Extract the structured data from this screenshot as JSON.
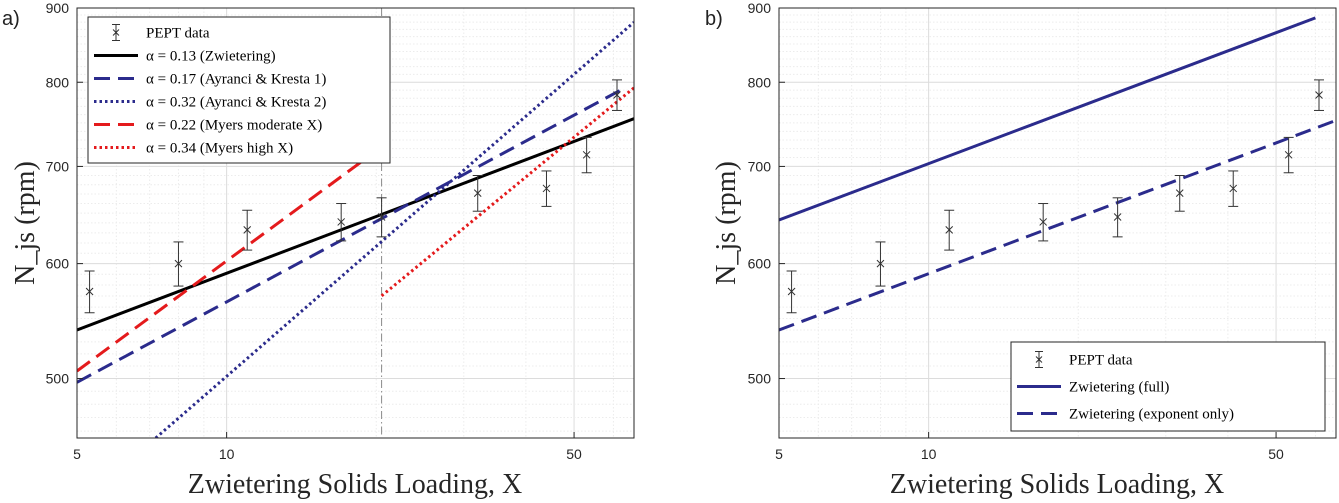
{
  "panels": [
    {
      "label": "a)"
    },
    {
      "label": "b)"
    }
  ],
  "chart_data": [
    {
      "type": "line",
      "panel": "a)",
      "xlabel": "Zwietering Solids Loading, X",
      "ylabel": "N_js (rpm)",
      "xscale": "log",
      "yscale": "log",
      "xlim": [
        5,
        66
      ],
      "ylim": [
        455,
        900
      ],
      "xticks": [
        5,
        10,
        50
      ],
      "yticks": [
        500,
        600,
        700,
        800,
        900
      ],
      "grid": true,
      "vline_x": 20.5,
      "legend_position": "top-left",
      "pept_data": {
        "name": "PEPT data",
        "x": [
          5.3,
          8,
          11,
          17,
          20.5,
          32,
          44,
          53,
          61
        ],
        "y": [
          574,
          600,
          633,
          641,
          646,
          671,
          676,
          713,
          784
        ],
        "err": [
          19,
          21,
          20,
          19,
          20,
          19,
          19,
          20,
          19
        ]
      },
      "series": [
        {
          "name": "α = 0.13 (Zwietering)",
          "color": "#000000",
          "style": "solid",
          "x": [
            5,
            66
          ],
          "y": [
            540,
            755
          ]
        },
        {
          "name": "α = 0.17 (Ayranci & Kresta 1)",
          "color": "#2b2b8c",
          "style": "dashed",
          "x": [
            5,
            62
          ],
          "y": [
            497,
            790
          ]
        },
        {
          "name": "α = 0.32 (Ayranci & Kresta 2)",
          "color": "#2b2b8c",
          "style": "dotted",
          "x": [
            7.2,
            66
          ],
          "y": [
            455,
            880
          ]
        },
        {
          "name": "α = 0.22 (Myers moderate X)",
          "color": "#e41a1c",
          "style": "dashed",
          "x": [
            5,
            20.5
          ],
          "y": [
            506,
            722
          ]
        },
        {
          "name": "α = 0.34 (Myers high X)",
          "color": "#e41a1c",
          "style": "dotted",
          "x": [
            20.5,
            66
          ],
          "y": [
            570,
            793
          ]
        }
      ]
    },
    {
      "type": "line",
      "panel": "b)",
      "xlabel": "Zwietering Solids Loading, X",
      "ylabel": "N_js (rpm)",
      "xscale": "log",
      "yscale": "log",
      "xlim": [
        5,
        66
      ],
      "ylim": [
        455,
        900
      ],
      "xticks": [
        5,
        10,
        50
      ],
      "yticks": [
        500,
        600,
        700,
        800,
        900
      ],
      "grid": true,
      "legend_position": "bottom-right",
      "pept_data": {
        "name": "PEPT data",
        "x": [
          5.3,
          8,
          11,
          17,
          24,
          32,
          41,
          53,
          61
        ],
        "y": [
          574,
          600,
          633,
          641,
          646,
          671,
          676,
          713,
          784
        ],
        "err": [
          19,
          21,
          20,
          19,
          20,
          19,
          19,
          20,
          19
        ]
      },
      "series": [
        {
          "name": "Zwietering (full)",
          "color": "#2b2b8c",
          "style": "solid",
          "x": [
            5,
            60
          ],
          "y": [
            643,
            886
          ]
        },
        {
          "name": "Zwietering (exponent only)",
          "color": "#2b2b8c",
          "style": "dashed",
          "x": [
            5,
            66
          ],
          "y": [
            540,
            753
          ]
        }
      ]
    }
  ]
}
